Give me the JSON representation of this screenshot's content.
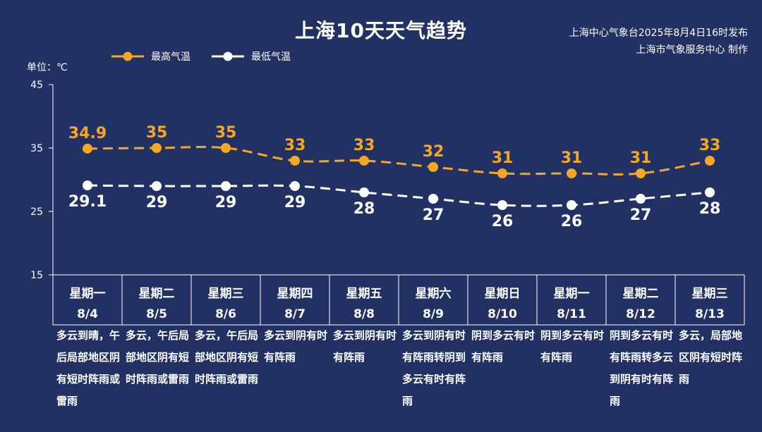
{
  "header": {
    "title": "上海10天天气趋势",
    "publisher_line1": "上海中心气象台2025年8月4日16时发布",
    "publisher_line2": "上海市气象服务中心 制作"
  },
  "unit_label": "单位：℃",
  "colors": {
    "background": "#223164",
    "high": "#F5A623",
    "low": "#FFFFFF",
    "axis": "#FFFFFF"
  },
  "chart_data": {
    "type": "line",
    "title": "上海10天天气趋势",
    "ylabel": "单位：℃",
    "ylim": [
      15,
      45
    ],
    "yticks": [
      15,
      25,
      35,
      45
    ],
    "grid": false,
    "legend_position": "top-left",
    "categories": [
      {
        "weekday": "星期一",
        "date": "8/4"
      },
      {
        "weekday": "星期二",
        "date": "8/5"
      },
      {
        "weekday": "星期三",
        "date": "8/6"
      },
      {
        "weekday": "星期四",
        "date": "8/7"
      },
      {
        "weekday": "星期五",
        "date": "8/8"
      },
      {
        "weekday": "星期六",
        "date": "8/9"
      },
      {
        "weekday": "星期日",
        "date": "8/10"
      },
      {
        "weekday": "星期一",
        "date": "8/11"
      },
      {
        "weekday": "星期二",
        "date": "8/12"
      },
      {
        "weekday": "星期三",
        "date": "8/13"
      }
    ],
    "series": [
      {
        "name": "最高气温",
        "color": "#F5A623",
        "values": [
          34.9,
          35,
          35,
          33,
          33,
          32,
          31,
          31,
          31,
          33
        ],
        "labels": [
          "34.9",
          "35",
          "35",
          "33",
          "33",
          "32",
          "31",
          "31",
          "31",
          "33"
        ]
      },
      {
        "name": "最低气温",
        "color": "#FFFFFF",
        "values": [
          29.1,
          29,
          29,
          29,
          28,
          27,
          26,
          26,
          27,
          28
        ],
        "labels": [
          "29.1",
          "29",
          "29",
          "29",
          "28",
          "27",
          "26",
          "26",
          "27",
          "28"
        ]
      }
    ]
  },
  "descriptions": [
    "多云到晴，午后局部地区阴有短时阵雨或雷雨",
    "多云，午后局部地区阴有短时阵雨或雷雨",
    "多云，午后局部地区阴有短时阵雨或雷雨",
    "多云到阴有时有阵雨",
    "多云到阴有时有阵雨",
    "多云到阴有时有阵雨转阴到多云有时有阵雨",
    "阴到多云有时有阵雨",
    "阴到多云有时有阵雨",
    "阴到多云有时有阵雨转多云到阴有时有阵雨",
    "多云，局部地区阴有短时阵雨"
  ]
}
